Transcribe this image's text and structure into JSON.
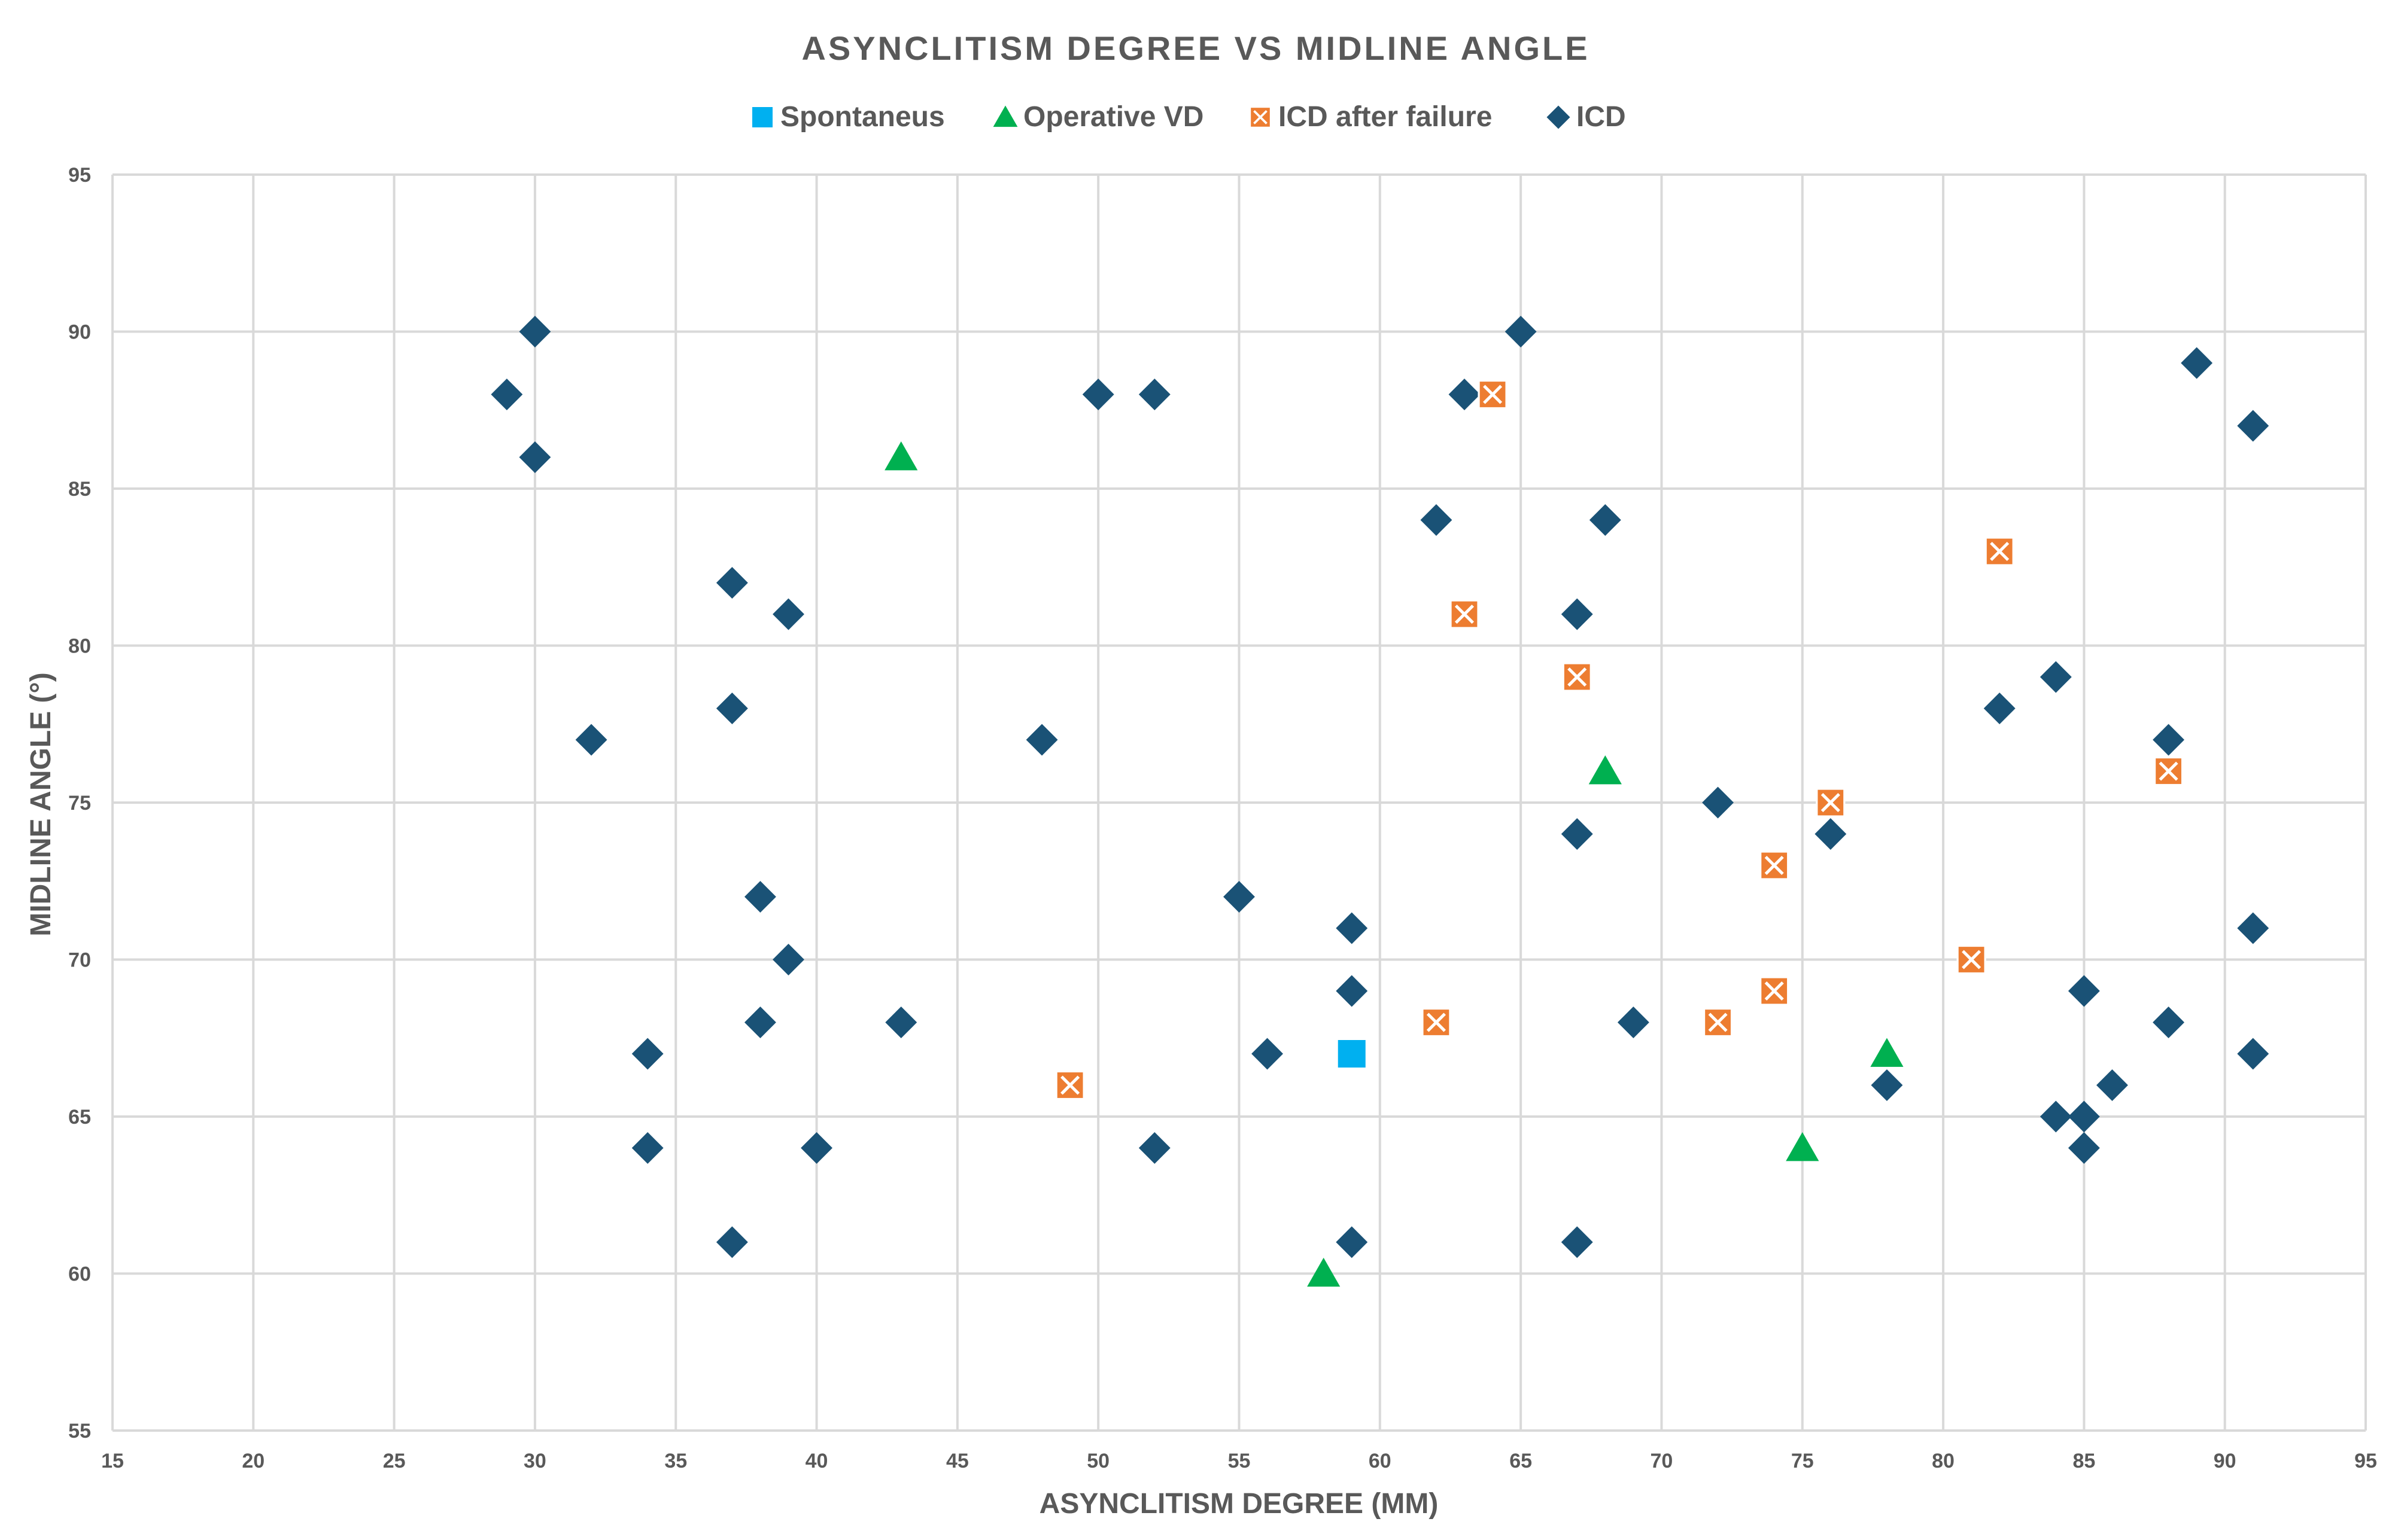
{
  "chart_data": {
    "type": "scatter",
    "title": "ASYNCLITISM DEGREE VS MIDLINE ANGLE",
    "xlabel": "ASYNCLITISM DEGREE (MM)",
    "ylabel": "MIDLINE ANGLE (°)",
    "xlim": [
      15,
      95
    ],
    "ylim": [
      55,
      95
    ],
    "xticks": [
      "15",
      "20",
      "25",
      "30",
      "35",
      "40",
      "45",
      "50",
      "55",
      "60",
      "65",
      "70",
      "75",
      "80",
      "85",
      "90",
      "95"
    ],
    "yticks": [
      "55",
      "60",
      "65",
      "70",
      "75",
      "80",
      "85",
      "90",
      "95"
    ],
    "grid": true,
    "legend_position": "top",
    "series": [
      {
        "name": "Spontaneus",
        "marker": "square",
        "color": "#00b0f0",
        "points": [
          [
            59,
            67
          ]
        ]
      },
      {
        "name": "Operative VD",
        "marker": "triangle",
        "color": "#00b050",
        "points": [
          [
            43,
            86
          ],
          [
            68,
            76
          ],
          [
            78,
            67
          ],
          [
            75,
            64
          ],
          [
            58,
            60
          ]
        ]
      },
      {
        "name": "ICD after failure",
        "marker": "square-x",
        "color": "#ed7d31",
        "points": [
          [
            64,
            88
          ],
          [
            63,
            81
          ],
          [
            67,
            79
          ],
          [
            82,
            83
          ],
          [
            76,
            75
          ],
          [
            88,
            76
          ],
          [
            74,
            73
          ],
          [
            81,
            70
          ],
          [
            62,
            68
          ],
          [
            72,
            68
          ],
          [
            74,
            69
          ],
          [
            49,
            66
          ]
        ]
      },
      {
        "name": "ICD",
        "marker": "diamond",
        "color": "#1a5276",
        "points": [
          [
            29,
            88
          ],
          [
            30,
            90
          ],
          [
            30,
            86
          ],
          [
            32,
            77
          ],
          [
            34,
            67
          ],
          [
            34,
            64
          ],
          [
            37,
            82
          ],
          [
            37,
            78
          ],
          [
            37,
            61
          ],
          [
            38,
            72
          ],
          [
            38,
            68
          ],
          [
            39,
            81
          ],
          [
            39,
            70
          ],
          [
            40,
            64
          ],
          [
            43,
            68
          ],
          [
            48,
            77
          ],
          [
            50,
            88
          ],
          [
            52,
            88
          ],
          [
            52,
            64
          ],
          [
            55,
            72
          ],
          [
            56,
            67
          ],
          [
            59,
            71
          ],
          [
            59,
            69
          ],
          [
            59,
            61
          ],
          [
            62,
            84
          ],
          [
            63,
            88
          ],
          [
            65,
            90
          ],
          [
            67,
            81
          ],
          [
            67,
            74
          ],
          [
            67,
            61
          ],
          [
            68,
            84
          ],
          [
            69,
            68
          ],
          [
            72,
            75
          ],
          [
            76,
            74
          ],
          [
            78,
            66
          ],
          [
            82,
            78
          ],
          [
            84,
            79
          ],
          [
            84,
            65
          ],
          [
            85,
            69
          ],
          [
            85,
            65
          ],
          [
            85,
            64
          ],
          [
            86,
            66
          ],
          [
            88,
            77
          ],
          [
            88,
            68
          ],
          [
            89,
            89
          ],
          [
            91,
            87
          ],
          [
            91,
            71
          ],
          [
            91,
            67
          ]
        ]
      }
    ]
  }
}
